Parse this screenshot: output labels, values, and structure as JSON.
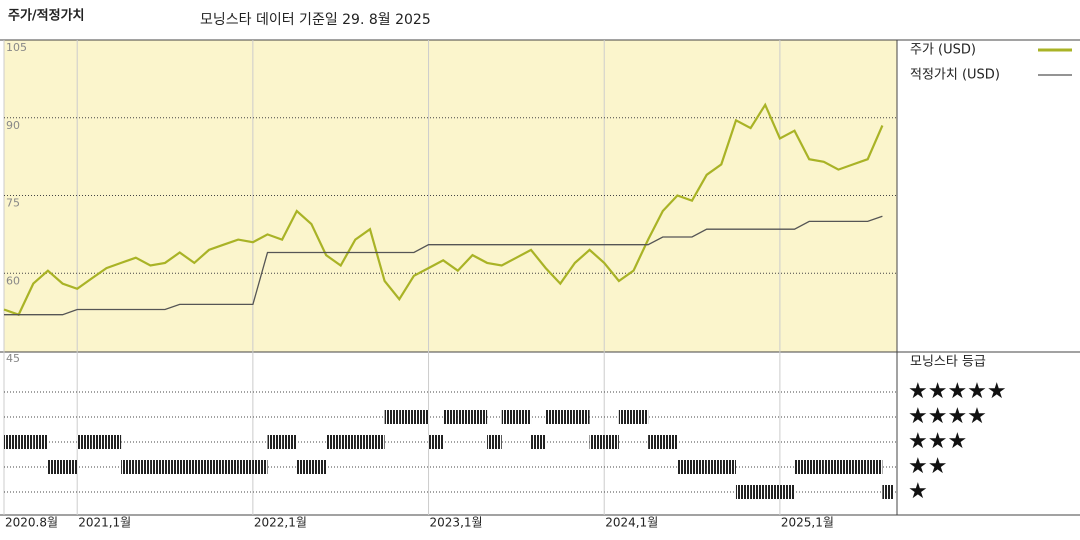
{
  "chart_data": {
    "type": "line",
    "title": "주가/적정가치",
    "subtitle": "모닝스타 데이터 기준일 29. 8월 2025",
    "x": [
      "2020-08",
      "2020-09",
      "2020-10",
      "2020-11",
      "2020-12",
      "2021-01",
      "2021-02",
      "2021-03",
      "2021-04",
      "2021-05",
      "2021-06",
      "2021-07",
      "2021-08",
      "2021-09",
      "2021-10",
      "2021-11",
      "2021-12",
      "2022-01",
      "2022-02",
      "2022-03",
      "2022-04",
      "2022-05",
      "2022-06",
      "2022-07",
      "2022-08",
      "2022-09",
      "2022-10",
      "2022-11",
      "2022-12",
      "2023-01",
      "2023-02",
      "2023-03",
      "2023-04",
      "2023-05",
      "2023-06",
      "2023-07",
      "2023-08",
      "2023-09",
      "2023-10",
      "2023-11",
      "2023-12",
      "2024-01",
      "2024-02",
      "2024-03",
      "2024-04",
      "2024-05",
      "2024-06",
      "2024-07",
      "2024-08",
      "2024-09",
      "2024-10",
      "2024-11",
      "2024-12",
      "2025-01",
      "2025-02",
      "2025-03",
      "2025-04",
      "2025-05",
      "2025-06",
      "2025-07",
      "2025-08"
    ],
    "xlim": [
      "2020-08",
      "2025-09"
    ],
    "xticks": [
      {
        "value": "2020-08",
        "label": "2020.8월"
      },
      {
        "value": "2021-01",
        "label": "2021,1월"
      },
      {
        "value": "2022-01",
        "label": "2022,1월"
      },
      {
        "value": "2023-01",
        "label": "2023,1월"
      },
      {
        "value": "2024-01",
        "label": "2024,1월"
      },
      {
        "value": "2025-01",
        "label": "2025,1월"
      }
    ],
    "ylim": [
      45,
      105
    ],
    "yticks": [
      45,
      60,
      75,
      90,
      105
    ],
    "series": [
      {
        "name": "주가 (USD)",
        "color": "#a9b326",
        "values": [
          53,
          52,
          58,
          60.5,
          58,
          57,
          59,
          61,
          62,
          63,
          61.5,
          62,
          64,
          62,
          64.5,
          65.5,
          66.5,
          66,
          67.5,
          66.5,
          72,
          69.5,
          63.5,
          61.5,
          66.5,
          68.5,
          58.5,
          55,
          59.5,
          61,
          62.5,
          60.5,
          63.5,
          62,
          61.5,
          63,
          64.5,
          61,
          58,
          62,
          64.5,
          62,
          58.5,
          60.5,
          66.5,
          72,
          75,
          74,
          79,
          81,
          89.5,
          88,
          92.5,
          86,
          87.5,
          82,
          81.5,
          80,
          81,
          82,
          88.5
        ]
      },
      {
        "name": "적정가치 (USD)",
        "color": "#555555",
        "values": [
          52,
          52,
          52,
          52,
          52,
          53,
          53,
          53,
          53,
          53,
          53,
          53,
          54,
          54,
          54,
          54,
          54,
          54,
          64,
          64,
          64,
          64,
          64,
          64,
          64,
          64,
          64,
          64,
          64,
          65.5,
          65.5,
          65.5,
          65.5,
          65.5,
          65.5,
          65.5,
          65.5,
          65.5,
          65.5,
          65.5,
          65.5,
          65.5,
          65.5,
          65.5,
          65.5,
          67,
          67,
          67,
          68.5,
          68.5,
          68.5,
          68.5,
          68.5,
          68.5,
          68.5,
          70,
          70,
          70,
          70,
          70,
          71
        ]
      }
    ],
    "ratings": {
      "title": "모닝스타 등급",
      "levels": [
        {
          "value": 5,
          "label": "★★★★★"
        },
        {
          "value": 4,
          "label": "★★★★"
        },
        {
          "value": 3,
          "label": "★★★"
        },
        {
          "value": 2,
          "label": "★★"
        },
        {
          "value": 1,
          "label": "★"
        }
      ],
      "values": [
        3,
        3,
        3,
        2,
        2,
        3,
        3,
        3,
        2,
        2,
        2,
        2,
        2,
        2,
        2,
        2,
        2,
        2,
        3,
        3,
        2,
        2,
        3,
        3,
        3,
        3,
        4,
        4,
        4,
        3,
        4,
        4,
        4,
        3,
        4,
        4,
        3,
        4,
        4,
        4,
        3,
        3,
        4,
        4,
        3,
        3,
        2,
        2,
        2,
        2,
        1,
        1,
        1,
        1,
        2,
        2,
        2,
        2,
        2,
        2,
        1
      ]
    }
  }
}
